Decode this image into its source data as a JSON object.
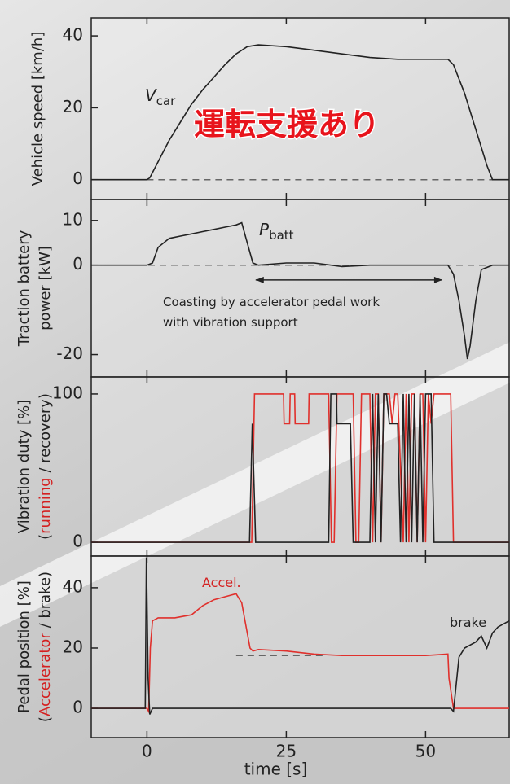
{
  "chart_data": [
    {
      "type": "line",
      "xlim": [
        -10,
        65
      ],
      "ylim": [
        -5.5,
        45
      ],
      "yticks": [
        0,
        20,
        40
      ],
      "ylabel": [
        [
          {
            "text": "Vehicle speed [km/h]",
            "color": "#222222"
          }
        ]
      ],
      "annotations": [
        {
          "text": "V",
          "sub": "car"
        },
        {
          "text": "運転支援あり",
          "color": "#e8141c"
        }
      ],
      "reference_lines": [
        {
          "y": 0,
          "x": [
            0,
            65
          ]
        }
      ],
      "series": [
        {
          "color": "#222222",
          "x": [
            -10,
            0,
            0.5,
            2,
            4,
            6,
            8,
            10,
            12,
            14,
            16,
            18,
            20,
            25,
            30,
            35,
            40,
            45,
            50,
            54,
            55,
            57,
            59,
            61,
            62,
            65
          ],
          "values": [
            0,
            0,
            0.5,
            5,
            11,
            16,
            21,
            25,
            28.5,
            32,
            35,
            37,
            37.5,
            37,
            36,
            35,
            34,
            33.5,
            33.5,
            33.5,
            32,
            24,
            14,
            4,
            0,
            0
          ]
        }
      ]
    },
    {
      "type": "line",
      "xlim": [
        -10,
        65
      ],
      "ylim": [
        -25,
        14.7
      ],
      "yticks": [
        -20,
        0,
        10
      ],
      "ylabel": [
        [
          {
            "text": "Traction battery",
            "color": "#222222"
          }
        ],
        [
          {
            "text": "power [kW]",
            "color": "#222222"
          }
        ]
      ],
      "annotations": [
        {
          "text": "P",
          "sub": "batt"
        },
        {
          "text": "Coasting by accelerator pedal work"
        },
        {
          "text": "with vibration support"
        }
      ],
      "reference_lines": [
        {
          "y": 0,
          "x": [
            -10,
            65
          ]
        }
      ],
      "arrow": {
        "x": [
          19.5,
          53
        ],
        "y": -3.3
      },
      "series": [
        {
          "color": "#222222",
          "x": [
            -10,
            0,
            1,
            2,
            4,
            6,
            8,
            10,
            12,
            14,
            16,
            17,
            18,
            19,
            20,
            25,
            30,
            35,
            40,
            45,
            50,
            53,
            54,
            55,
            56,
            57,
            57.5,
            58,
            59,
            60,
            62,
            65
          ],
          "values": [
            0,
            0,
            0.5,
            4,
            6,
            6.5,
            7,
            7.5,
            8,
            8.5,
            9,
            9.5,
            5,
            0.5,
            0,
            0.5,
            0.5,
            -0.3,
            0,
            0,
            0,
            0,
            0,
            -2,
            -8,
            -16,
            -21,
            -18,
            -8,
            -1,
            0,
            0
          ]
        }
      ]
    },
    {
      "type": "line",
      "xlim": [
        -10,
        65
      ],
      "ylim": [
        -9.3,
        111.5
      ],
      "yticks": [
        0,
        100
      ],
      "ylabel": [
        [
          {
            "text": "Vibration duty [%]",
            "color": "#222222"
          }
        ],
        [
          {
            "text": "(",
            "color": "#222222"
          },
          {
            "text": "running",
            "color": "#d42020"
          },
          {
            "text": " / recovery)",
            "color": "#222222"
          }
        ]
      ],
      "annotations": [],
      "series": [
        {
          "color": "#e0302c",
          "x": [
            -10,
            18.8,
            19.3,
            24.5,
            24.6,
            25.6,
            25.7,
            26.5,
            26.6,
            29.0,
            29.1,
            32.6,
            33.1,
            33.6,
            34.1,
            37.0,
            37.5,
            38.0,
            38.5,
            40.0,
            40.5,
            41.0,
            41.5,
            42.0,
            42.5,
            43.5,
            44.0,
            44.5,
            45.0,
            46.0,
            46.5,
            47.0,
            47.5,
            48.0,
            48.5,
            49.0,
            49.5,
            50.0,
            50.5,
            51.0,
            51.5,
            54.5,
            55.0,
            65
          ],
          "values": [
            0,
            0,
            100,
            100,
            80,
            80,
            100,
            100,
            80,
            80,
            100,
            100,
            0,
            0,
            100,
            100,
            0,
            0,
            100,
            100,
            0,
            100,
            100,
            0,
            100,
            100,
            80,
            100,
            100,
            0,
            100,
            0,
            100,
            100,
            0,
            100,
            100,
            0,
            100,
            80,
            100,
            100,
            0,
            0
          ]
        },
        {
          "color": "#222222",
          "x": [
            -10,
            18.4,
            18.9,
            19.5,
            32.6,
            33.0,
            34.0,
            34.1,
            36.5,
            37.0,
            40.0,
            40.5,
            41.0,
            41.5,
            42.0,
            42.5,
            43.0,
            43.5,
            45.0,
            45.5,
            46.0,
            46.5,
            47.0,
            47.5,
            48.0,
            48.5,
            49.0,
            49.5,
            50.0,
            51.0,
            51.5,
            52.0,
            55.0,
            65
          ],
          "values": [
            0,
            0,
            80,
            0,
            0,
            100,
            100,
            80,
            80,
            0,
            0,
            100,
            0,
            100,
            0,
            100,
            100,
            80,
            80,
            0,
            100,
            0,
            100,
            0,
            100,
            0,
            100,
            0,
            100,
            100,
            0,
            0,
            0,
            0
          ]
        }
      ]
    },
    {
      "type": "line",
      "xlim": [
        -10,
        65
      ],
      "ylim": [
        -9.7,
        50.5
      ],
      "yticks": [
        0,
        20,
        40
      ],
      "xticks": [
        0,
        25,
        50
      ],
      "xlabel": "time [s]",
      "ylabel": [
        [
          {
            "text": "Pedal position [%]",
            "color": "#222222"
          }
        ],
        [
          {
            "text": "(",
            "color": "#222222"
          },
          {
            "text": "Accelerator",
            "color": "#d42020"
          },
          {
            "text": " / brake)",
            "color": "#222222"
          }
        ]
      ],
      "annotations": [
        {
          "text": "Accel.",
          "color": "#d42020"
        },
        {
          "text": "brake",
          "color": "#222222"
        }
      ],
      "reference_lines": [
        {
          "y": 17.5,
          "x": [
            16,
            31.5
          ]
        }
      ],
      "series": [
        {
          "color": "#e0302c",
          "x": [
            -10,
            0,
            0.3,
            0.6,
            1,
            2,
            5,
            8,
            10,
            12,
            14,
            16,
            17,
            18,
            18.5,
            19,
            20,
            25,
            30,
            35,
            40,
            45,
            50,
            54,
            54.2,
            55,
            65
          ],
          "values": [
            0,
            0,
            -1,
            20,
            29,
            30,
            30,
            31,
            34,
            36,
            37,
            38,
            35,
            25,
            20,
            19,
            19.5,
            19,
            18,
            17.5,
            17.5,
            17.5,
            17.5,
            18,
            10,
            0,
            0
          ]
        },
        {
          "color": "#222222",
          "x": [
            -10,
            -0.3,
            -0.1,
            0.2,
            0.5,
            1,
            2,
            54,
            54.5,
            55,
            55.5,
            56,
            57,
            58,
            59,
            60,
            61,
            62,
            63,
            64,
            65
          ],
          "values": [
            0,
            0,
            50,
            10,
            -2,
            0,
            0,
            0,
            0,
            -1,
            8,
            17,
            20,
            21,
            22,
            24,
            20,
            25,
            27,
            28,
            29
          ]
        }
      ]
    }
  ]
}
